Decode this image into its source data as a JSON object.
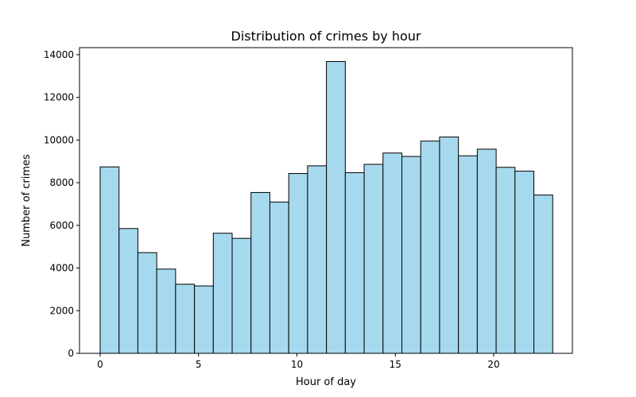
{
  "chart_data": {
    "type": "bar",
    "title": "Distribution of crimes by hour",
    "xlabel": "Hour of day",
    "ylabel": "Number of crimes",
    "x_ticks": [
      0,
      5,
      10,
      15,
      20
    ],
    "y_ticks": [
      0,
      2000,
      4000,
      6000,
      8000,
      10000,
      12000,
      14000
    ],
    "xlim": [
      -1.05,
      24.0
    ],
    "ylim": [
      0,
      14330
    ],
    "bins": 24,
    "bin_range": [
      0,
      23
    ],
    "values": [
      8740,
      5850,
      4720,
      3950,
      3240,
      3160,
      5630,
      5390,
      7540,
      7090,
      8430,
      8790,
      13680,
      8470,
      8860,
      9390,
      9230,
      9950,
      10140,
      9260,
      9570,
      8720,
      8540,
      7420
    ],
    "grid": false,
    "legend": "none",
    "colors": {
      "bar_fill": "#a6d9ee",
      "bar_edge": "#000000",
      "axes": "#000000",
      "background": "#ffffff"
    }
  }
}
